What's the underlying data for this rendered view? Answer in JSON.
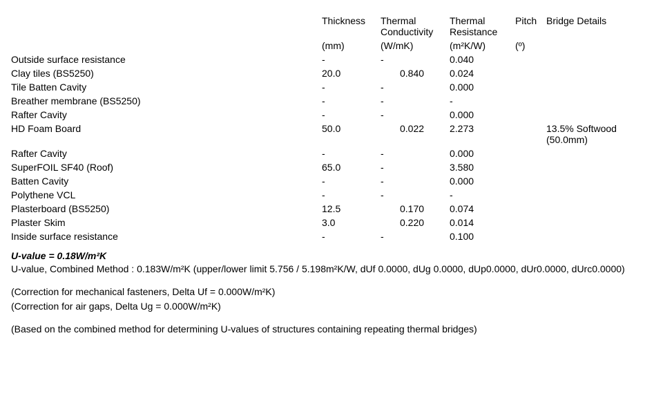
{
  "table": {
    "headers": {
      "layer": "",
      "thickness": "Thickness",
      "thickness_unit": "(mm)",
      "conductivity": "Thermal Conductivity",
      "conductivity_unit": "(W/mK)",
      "resistance": "Thermal Resistance",
      "resistance_unit": "(m²K/W)",
      "pitch": "Pitch",
      "pitch_unit": "(º)",
      "bridge": "Bridge Details"
    },
    "rows": [
      {
        "layer": "Outside surface resistance",
        "thk": "-",
        "cond": "-",
        "res": "0.040",
        "pitch": "",
        "bridge": ""
      },
      {
        "layer": "Clay tiles (BS5250)",
        "thk": "20.0",
        "cond": "0.840",
        "res": "0.024",
        "pitch": "",
        "bridge": ""
      },
      {
        "layer": "Tile Batten Cavity",
        "thk": "-",
        "cond": "-",
        "res": "0.000",
        "pitch": "",
        "bridge": ""
      },
      {
        "layer": "Breather membrane (BS5250)",
        "thk": "-",
        "cond": "-",
        "res": "-",
        "pitch": "",
        "bridge": ""
      },
      {
        "layer": "Rafter Cavity",
        "thk": "-",
        "cond": "-",
        "res": "0.000",
        "pitch": "",
        "bridge": ""
      },
      {
        "layer": "HD Foam Board",
        "thk": "50.0",
        "cond": "0.022",
        "res": "2.273",
        "pitch": "",
        "bridge": "13.5% Softwood (50.0mm)"
      },
      {
        "layer": "Rafter Cavity",
        "thk": "-",
        "cond": "-",
        "res": "0.000",
        "pitch": "",
        "bridge": ""
      },
      {
        "layer": "SuperFOIL SF40 (Roof)",
        "thk": "65.0",
        "cond": "-",
        "res": "3.580",
        "pitch": "",
        "bridge": ""
      },
      {
        "layer": "Batten Cavity",
        "thk": "-",
        "cond": "-",
        "res": "0.000",
        "pitch": "",
        "bridge": ""
      },
      {
        "layer": "Polythene VCL",
        "thk": "-",
        "cond": "-",
        "res": "-",
        "pitch": "",
        "bridge": ""
      },
      {
        "layer": "Plasterboard (BS5250)",
        "thk": "12.5",
        "cond": "0.170",
        "res": "0.074",
        "pitch": "",
        "bridge": ""
      },
      {
        "layer": "Plaster Skim",
        "thk": "3.0",
        "cond": "0.220",
        "res": "0.014",
        "pitch": "",
        "bridge": ""
      },
      {
        "layer": "Inside surface resistance",
        "thk": "-",
        "cond": "-",
        "res": "0.100",
        "pitch": "",
        "bridge": ""
      }
    ]
  },
  "summary": {
    "uvalue": "U-value = 0.18W/m²K",
    "combined": "U-value, Combined Method   : 0.183W/m²K (upper/lower limit 5.756 / 5.198m²K/W, dUf 0.0000, dUg 0.0000, dUp0.0000, dUr0.0000,  dUrc0.0000)",
    "corr_uf": "(Correction for mechanical fasteners, Delta Uf = 0.000W/m²K)",
    "corr_ug": "(Correction for air gaps, Delta Ug = 0.000W/m²K)",
    "basis": "(Based on the combined method for determining U-values of structures containing repeating thermal bridges)"
  }
}
